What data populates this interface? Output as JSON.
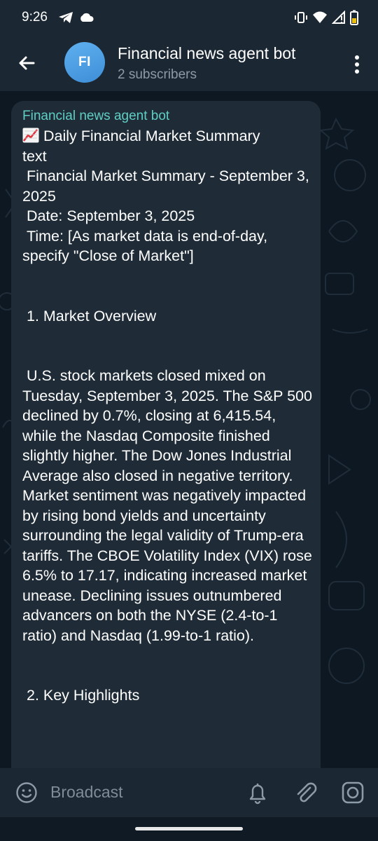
{
  "status_bar": {
    "time": "9:26",
    "icons": [
      "telegram-icon",
      "cloud-icon",
      "vibrate-icon",
      "wifi-icon",
      "signal-icon",
      "battery-icon"
    ]
  },
  "header": {
    "avatar_initials": "FI",
    "title": "Financial news agent bot",
    "subtitle": "2 subscribers",
    "icons": [
      "back-arrow-icon",
      "more-vert-icon"
    ]
  },
  "message": {
    "sender": "Financial news agent bot",
    "heading": "Daily Financial Market Summary",
    "heading_icon": "chart-increasing-icon",
    "body": "\ntext\n Financial Market Summary - September 3, 2025\n Date: September 3, 2025\n Time: [As market data is end-of-day, specify \"Close of Market\"]\n\n\n 1. Market Overview\n\n\n U.S. stock markets closed mixed on Tuesday, September 3, 2025. The S&P 500 declined by 0.7%, closing at 6,415.54, while the Nasdaq Composite finished slightly higher. The Dow Jones Industrial Average also closed in negative territory. Market sentiment was negatively impacted by rising bond yields and uncertainty surrounding the legal validity of Trump-era tariffs. The CBOE Volatility Index (VIX) rose 6.5% to 17.17, indicating increased market unease. Declining issues outnumbered advancers on both the NYSE (2.4-to-1 ratio) and Nasdaq (1.99-to-1 ratio).\n\n\n 2. Key Highlights"
  },
  "composer": {
    "placeholder": "Broadcast",
    "icons": [
      "emoji-icon",
      "bell-icon",
      "attach-icon",
      "camera-icon"
    ]
  },
  "colors": {
    "header_bg": "#1b2733",
    "bubble_bg": "#1f2c38",
    "sender": "#5fcfc4",
    "avatar": "#4a9fe4"
  }
}
